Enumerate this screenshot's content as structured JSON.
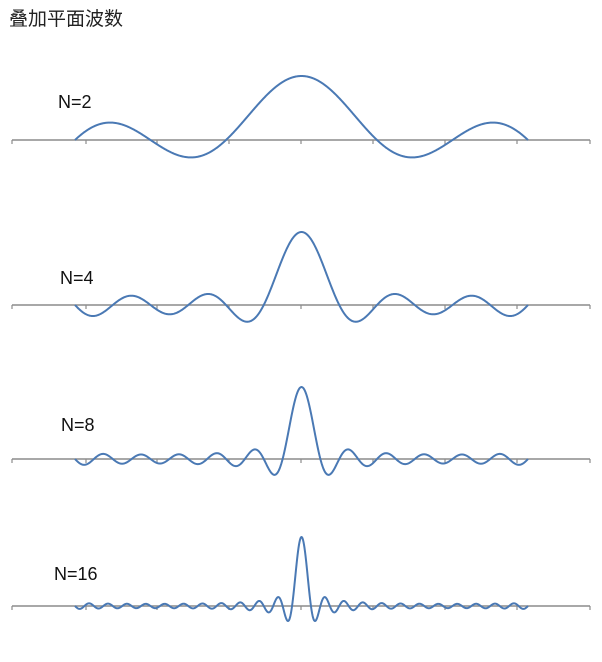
{
  "title": "叠加平面波数",
  "colors": {
    "curve": "#4a79b4",
    "axis": "#8c8c8c"
  },
  "chart_data": [
    {
      "type": "line",
      "label": "N=2",
      "n": 2,
      "x_range": [
        -1,
        1
      ],
      "peak": 1
    },
    {
      "type": "line",
      "label": "N=4",
      "n": 4,
      "x_range": [
        -1,
        1
      ],
      "peak": 1
    },
    {
      "type": "line",
      "label": "N=8",
      "n": 8,
      "x_range": [
        -1,
        1
      ],
      "peak": 1
    },
    {
      "type": "line",
      "label": "N=16",
      "n": 16,
      "x_range": [
        -1,
        1
      ],
      "peak": 1
    }
  ]
}
